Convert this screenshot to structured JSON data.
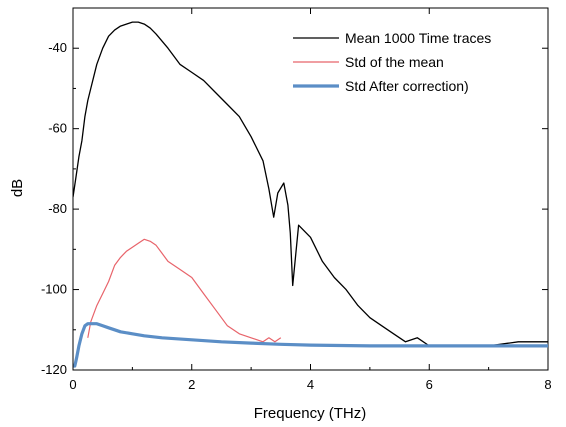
{
  "chart_data": {
    "type": "line",
    "title": "",
    "xlabel": "Frequency (THz)",
    "ylabel": "dB",
    "xlim": [
      0,
      8
    ],
    "ylim": [
      -120,
      -30
    ],
    "xticks": [
      0,
      2,
      4,
      6,
      8
    ],
    "xtick_labels": [
      "0",
      "2",
      "4",
      "6",
      "8"
    ],
    "yticks": [
      -120,
      -100,
      -80,
      -60,
      -40
    ],
    "ytick_labels": [
      "-120",
      "-100",
      "-80",
      "-60",
      "-40"
    ],
    "grid": false,
    "legend_position": "top-right",
    "series": [
      {
        "name": "Mean 1000 Time traces",
        "color": "#000000",
        "x": [
          0.0,
          0.05,
          0.1,
          0.15,
          0.2,
          0.25,
          0.3,
          0.4,
          0.5,
          0.6,
          0.7,
          0.8,
          0.9,
          1.0,
          1.1,
          1.2,
          1.3,
          1.4,
          1.6,
          1.8,
          2.0,
          2.2,
          2.4,
          2.6,
          2.8,
          3.0,
          3.2,
          3.3,
          3.38,
          3.45,
          3.55,
          3.62,
          3.66,
          3.7,
          3.8,
          4.0,
          4.2,
          4.4,
          4.6,
          4.8,
          5.0,
          5.2,
          5.4,
          5.6,
          5.8,
          6.0,
          6.5,
          7.0,
          7.5,
          8.0
        ],
        "y": [
          -77,
          -72,
          -67,
          -63,
          -57,
          -53,
          -50,
          -44,
          -40,
          -37,
          -35.5,
          -34.5,
          -34,
          -33.5,
          -33.5,
          -34,
          -35,
          -36.5,
          -40,
          -44,
          -46,
          -48,
          -51,
          -54,
          -57,
          -62,
          -68,
          -75,
          -82,
          -76,
          -73.5,
          -79,
          -86,
          -99,
          -84,
          -87,
          -93,
          -97,
          -100,
          -104,
          -107,
          -109,
          -111,
          -113,
          -112,
          -114,
          -114,
          -114,
          -113,
          -113
        ]
      },
      {
        "name": "Std of the mean",
        "color": "#e8646b",
        "x": [
          0.25,
          0.3,
          0.4,
          0.5,
          0.6,
          0.7,
          0.8,
          0.9,
          1.0,
          1.1,
          1.2,
          1.3,
          1.4,
          1.5,
          1.6,
          1.8,
          2.0,
          2.2,
          2.4,
          2.6,
          2.8,
          3.0,
          3.2,
          3.3,
          3.4,
          3.5
        ],
        "y": [
          -112,
          -108,
          -104,
          -101,
          -98,
          -94,
          -92,
          -90.5,
          -89.5,
          -88.5,
          -87.5,
          -88,
          -89,
          -91,
          -93,
          -95,
          -97,
          -101,
          -105,
          -109,
          -111,
          -112,
          -113,
          -112,
          -113,
          -112
        ]
      },
      {
        "name": "Std After correction)",
        "color": "#5b8ec6",
        "x": [
          0.0,
          0.03,
          0.06,
          0.1,
          0.15,
          0.2,
          0.25,
          0.3,
          0.4,
          0.5,
          0.6,
          0.7,
          0.8,
          1.0,
          1.2,
          1.5,
          2.0,
          2.5,
          3.0,
          3.5,
          4.0,
          5.0,
          6.0,
          7.0,
          8.0
        ],
        "y": [
          -119,
          -119,
          -117,
          -114,
          -111,
          -109,
          -108.5,
          -108.5,
          -108.5,
          -109,
          -109.5,
          -110,
          -110.5,
          -111,
          -111.5,
          -112,
          -112.5,
          -113,
          -113.3,
          -113.6,
          -113.8,
          -114,
          -114,
          -114,
          -114
        ]
      }
    ]
  }
}
